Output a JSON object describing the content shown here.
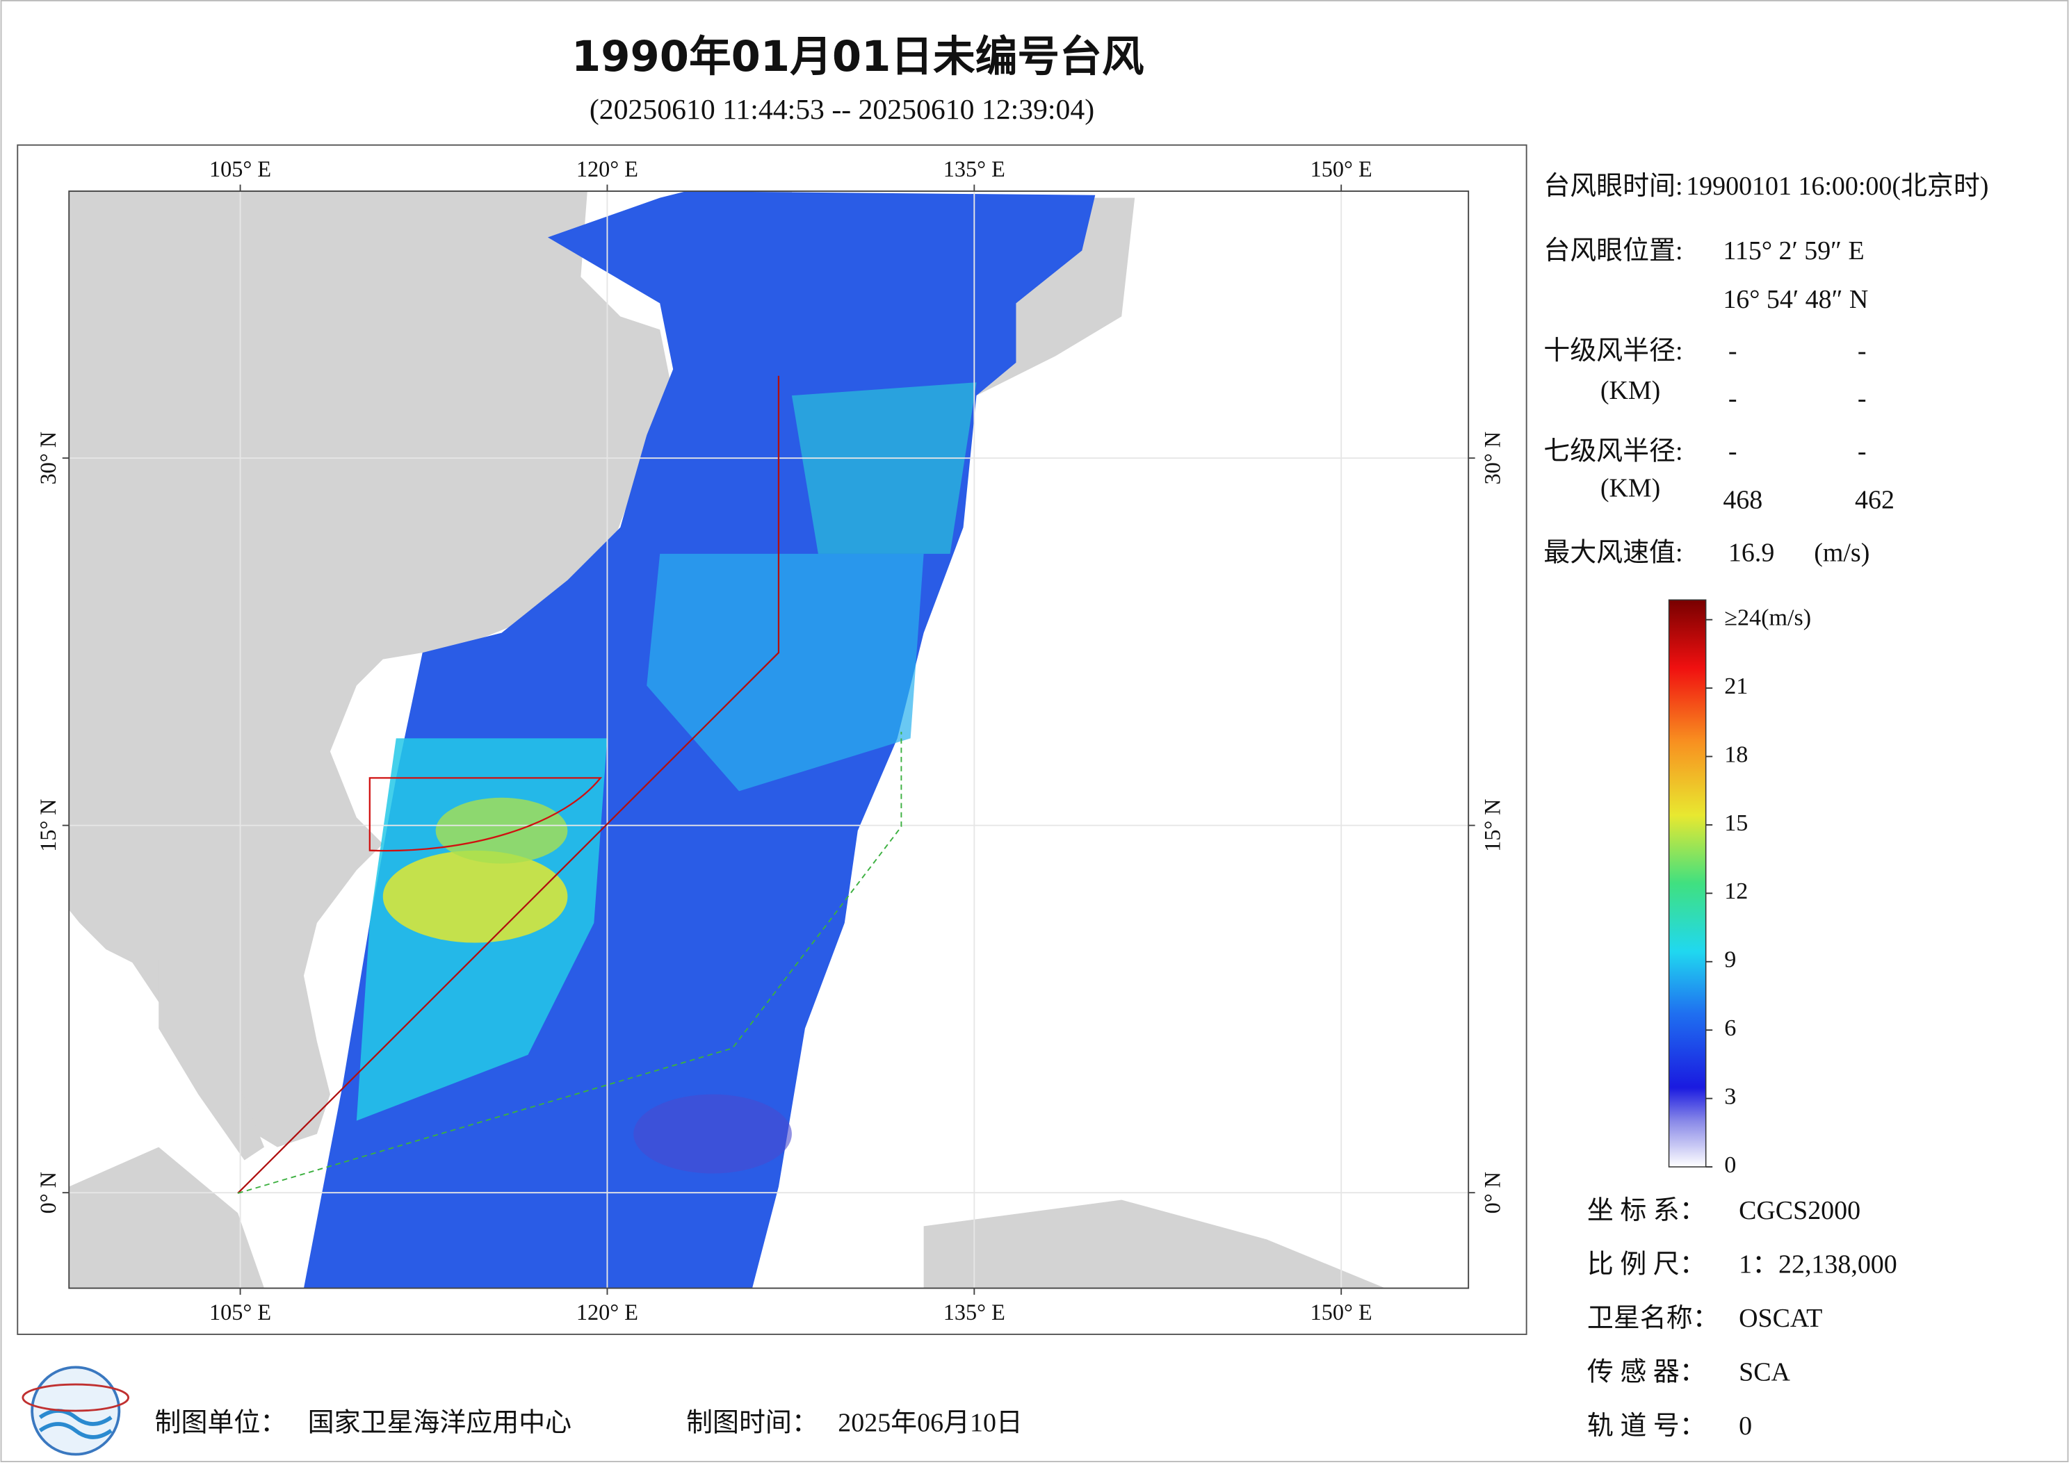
{
  "title": "1990年01月01日未编号台风",
  "subtitle": "(20250610 11:44:53 -- 20250610 12:39:04)",
  "map": {
    "lonlim": [
      98,
      155.2
    ],
    "latlim": [
      -3.9,
      40.9
    ],
    "lon_ticks": [
      {
        "value": 105,
        "label": "105° E"
      },
      {
        "value": 120,
        "label": "120° E"
      },
      {
        "value": 135,
        "label": "135° E"
      },
      {
        "value": 150,
        "label": "150° E"
      }
    ],
    "lat_ticks": [
      {
        "value": 0,
        "label": "0° N"
      },
      {
        "value": 15,
        "label": "15° N"
      },
      {
        "value": 30,
        "label": "30° N"
      }
    ]
  },
  "info": {
    "eye_time": {
      "label": "台风眼时间:",
      "value": "19900101 16:00:00(北京时)"
    },
    "eye_position": {
      "label": "台风眼位置:",
      "lon": "115° 2′ 59″ E",
      "lat": "16° 54′ 48″ N"
    },
    "radius_10": {
      "label": "十级风半径:",
      "unit": "(KM)",
      "row1": [
        "-",
        "-"
      ],
      "row2": [
        "-",
        "-"
      ]
    },
    "radius_7": {
      "label": "七级风半径:",
      "unit": "(KM)",
      "row1": [
        "-",
        "-"
      ],
      "row2": [
        468,
        462
      ]
    },
    "max_wind": {
      "label": "最大风速值:",
      "value": 16.9,
      "unit": "(m/s)"
    }
  },
  "colorbar": {
    "lim": [
      0,
      24
    ],
    "ticks": [
      0,
      3,
      6,
      9,
      12,
      15,
      18,
      21,
      {
        "value": 24,
        "label": "≥24(m/s)"
      }
    ]
  },
  "meta": [
    {
      "label": "坐 标 系：",
      "value": "CGCS2000"
    },
    {
      "label": "比 例 尺：",
      "value": "1：22,138,000"
    },
    {
      "label": "卫星名称：",
      "value": "OSCAT"
    },
    {
      "label": "传 感 器：",
      "value": "SCA"
    },
    {
      "label": "轨 道 号：",
      "value": 0
    }
  ],
  "footer": {
    "unit_label": "制图单位：",
    "unit": "国家卫星海洋应用中心",
    "time_label": "制图时间：",
    "time": "2025年06月10日"
  }
}
